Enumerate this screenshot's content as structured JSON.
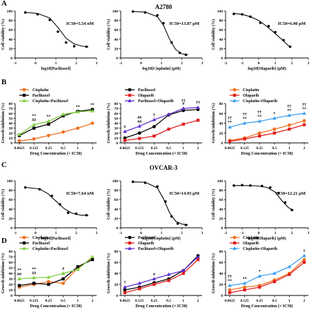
{
  "panel_letters": [
    "A",
    "B",
    "C",
    "D"
  ],
  "cell_lines": [
    "A2780",
    "OVCAR-3"
  ],
  "chart_data": [
    {
      "id": "A1",
      "type": "line",
      "row": "A",
      "col": 0,
      "xlabel": "log10[Paclitaxel]",
      "ylabel": "Cell viability (%)",
      "annotation": "IC50=5.54 nM",
      "xlim": [
        -1,
        3
      ],
      "ylim": [
        0,
        100
      ],
      "xticks": [
        -1,
        0,
        1,
        2,
        3
      ],
      "yticks": [
        0,
        20,
        40,
        60,
        80,
        100
      ],
      "points_x": [
        -0.5,
        0.1,
        0.7,
        1.1,
        1.5,
        1.9,
        2.5
      ],
      "points_y": [
        97,
        93,
        81,
        56,
        33,
        25,
        24
      ],
      "curve_x": [
        -0.5,
        0.1,
        0.7,
        1.1,
        1.5,
        1.9,
        2.3,
        2.6
      ],
      "curve_y": [
        97,
        95,
        85,
        65,
        42,
        30,
        25,
        24
      ]
    },
    {
      "id": "A2",
      "type": "line",
      "row": "A",
      "col": 1,
      "xlabel": "log10[Cisplatin] (μM)",
      "ylabel": "Cell viability (%)",
      "annotation": "IC50=13.87 μM",
      "xlim": [
        -1,
        3
      ],
      "ylim": [
        0,
        100
      ],
      "xticks": [
        -1,
        0,
        1,
        2,
        3
      ],
      "yticks": [
        0,
        20,
        40,
        60,
        80,
        100
      ],
      "points_x": [
        -0.4,
        0.2,
        0.8,
        1.1,
        1.5,
        1.9,
        2.2
      ],
      "points_y": [
        99,
        97,
        91,
        74,
        33,
        11,
        7
      ],
      "curve_x": [
        -0.4,
        0.2,
        0.8,
        1.1,
        1.4,
        1.7,
        2.0,
        2.3
      ],
      "curve_y": [
        99,
        98,
        88,
        70,
        40,
        18,
        9,
        7
      ]
    },
    {
      "id": "A3",
      "type": "line",
      "row": "A",
      "col": 2,
      "xlabel": "log10[Olaparib] (μM)",
      "ylabel": "Cell viability (%)",
      "annotation": "IC50=6.00 μM",
      "xlim": [
        -2,
        3
      ],
      "ylim": [
        0,
        100
      ],
      "xticks": [
        -2,
        -1,
        0,
        1,
        2,
        3
      ],
      "yticks": [
        0,
        20,
        40,
        60,
        80,
        100
      ],
      "points_x": [
        -1.5,
        -1,
        -0.5,
        0.1,
        0.6,
        1.0,
        1.5,
        1.9
      ],
      "points_y": [
        94,
        93,
        88,
        75,
        68,
        55,
        38,
        24
      ],
      "curve_x": [
        -1.5,
        -1,
        -0.5,
        0,
        0.5,
        1,
        1.5,
        1.9
      ],
      "curve_y": [
        95,
        93,
        88,
        80,
        67,
        52,
        36,
        23
      ]
    },
    {
      "id": "B1",
      "type": "line",
      "row": "B",
      "col": 0,
      "xlabel": "Drug Concentration (× IC50)",
      "ylabel": "Growth inhibition (%)",
      "categories": [
        "0.0625",
        "0.125",
        "0.25",
        "0.5",
        "1",
        "2"
      ],
      "ylim": [
        0,
        80
      ],
      "yticks": [
        0,
        10,
        20,
        30,
        40,
        50,
        60,
        70,
        80
      ],
      "legend": [
        "Cisplatin",
        "Paclitaxel",
        "Cisplatin+Paclitaxel"
      ],
      "series": [
        {
          "name": "Cisplatin",
          "color": "#f07020",
          "marker": "circle",
          "values": [
            4,
            8,
            15,
            22,
            30,
            40
          ]
        },
        {
          "name": "Paclitaxel",
          "color": "#000000",
          "marker": "square",
          "values": [
            15,
            30,
            38,
            55,
            64,
            68
          ]
        },
        {
          "name": "Cisplatin+Paclitaxel",
          "color": "#80d040",
          "marker": "triangle",
          "values": [
            17,
            37,
            44,
            58,
            63,
            65
          ]
        }
      ],
      "annotations": [
        {
          "i": 1,
          "text": "##"
        },
        {
          "i": 1,
          "text": "**"
        },
        {
          "i": 2,
          "text": "**"
        },
        {
          "i": 4,
          "text": "**"
        },
        {
          "i": 5,
          "text": "**"
        }
      ]
    },
    {
      "id": "B2",
      "type": "line",
      "row": "B",
      "col": 1,
      "xlabel": "Drug Concentration (× IC50)",
      "ylabel": "Growth inhibition (%)",
      "categories": [
        "0.0625",
        "0.125",
        "0.25",
        "0.5",
        "1",
        "2"
      ],
      "ylim": [
        0,
        80
      ],
      "yticks": [
        0,
        10,
        20,
        30,
        40,
        50,
        60,
        70,
        80
      ],
      "legend": [
        "Paclitaxel",
        "Olaparib",
        "Paclitaxel+Olaparib"
      ],
      "series": [
        {
          "name": "Paclitaxel",
          "color": "#000000",
          "marker": "circle",
          "values": [
            10,
            20,
            33,
            57,
            66,
            68
          ]
        },
        {
          "name": "Olaparib",
          "color": "#e02020",
          "marker": "square",
          "values": [
            5,
            9,
            14,
            28,
            38,
            46
          ]
        },
        {
          "name": "Paclitaxel+Olaparib",
          "color": "#6030d0",
          "marker": "triangle",
          "values": [
            23,
            34,
            47,
            58,
            70,
            72
          ]
        }
      ],
      "annotations": [
        {
          "i": 0,
          "text": "#"
        },
        {
          "i": 1,
          "text": "##"
        },
        {
          "i": 1,
          "text": "##"
        },
        {
          "i": 2,
          "text": "†"
        },
        {
          "i": 4,
          "text": "#"
        },
        {
          "i": 4,
          "text": "††"
        },
        {
          "i": 5,
          "text": "††"
        }
      ]
    },
    {
      "id": "B3",
      "type": "line",
      "row": "B",
      "col": 2,
      "xlabel": "Drug Concentration (× IC50)",
      "ylabel": "Growth inhibition (%)",
      "categories": [
        "0.0625",
        "0.125",
        "0.25",
        "0.5",
        "1",
        "2"
      ],
      "ylim": [
        0,
        80
      ],
      "yticks": [
        0,
        20,
        40,
        60,
        80
      ],
      "legend": [
        "Cisplatin",
        "Olaparib",
        "Cisplatin+Olaparib"
      ],
      "series": [
        {
          "name": "Cisplatin",
          "color": "#f07020",
          "marker": "circle",
          "values": [
            5,
            10,
            20,
            28,
            36,
            45
          ]
        },
        {
          "name": "Olaparib",
          "color": "#e02020",
          "marker": "square",
          "values": [
            3,
            8,
            14,
            20,
            28,
            37
          ]
        },
        {
          "name": "Cisplatin+Olaparib",
          "color": "#40a0f0",
          "marker": "triangle",
          "values": [
            32,
            40,
            44,
            50,
            56,
            60
          ]
        }
      ],
      "annotations": [
        {
          "i": 0,
          "text": "**"
        },
        {
          "i": 0,
          "text": "††"
        },
        {
          "i": 1,
          "text": "**"
        },
        {
          "i": 1,
          "text": "††"
        },
        {
          "i": 2,
          "text": "**"
        },
        {
          "i": 2,
          "text": "††"
        },
        {
          "i": 3,
          "text": "*"
        },
        {
          "i": 4,
          "text": "**"
        },
        {
          "i": 4,
          "text": "††"
        },
        {
          "i": 5,
          "text": "**"
        },
        {
          "i": 5,
          "text": "††"
        }
      ]
    },
    {
      "id": "C1",
      "type": "line",
      "row": "C",
      "col": 0,
      "xlabel": "log10[Paclitaxel]",
      "ylabel": "Cell viability (%)",
      "annotation": "IC50=7.64 nM",
      "xlim": [
        -1,
        3
      ],
      "ylim": [
        0,
        100
      ],
      "xticks": [
        -1,
        0,
        1,
        2,
        3
      ],
      "yticks": [
        0,
        20,
        40,
        60,
        80,
        100
      ],
      "points_x": [
        -0.5,
        0.2,
        0.8,
        1.2,
        1.6,
        2.0,
        2.5
      ],
      "points_y": [
        86,
        82,
        68,
        50,
        32,
        30,
        27
      ],
      "curve_x": [
        -0.5,
        0.2,
        0.6,
        1.0,
        1.4,
        1.8,
        2.2,
        2.6
      ],
      "curve_y": [
        86,
        83,
        73,
        57,
        41,
        31,
        27,
        26
      ]
    },
    {
      "id": "C2",
      "type": "line",
      "row": "C",
      "col": 1,
      "xlabel": "log10[Cisplatin] (μM)",
      "ylabel": "Cell viability (%)",
      "annotation": "IC50=14.93 μM",
      "xlim": [
        -1,
        3
      ],
      "ylim": [
        0,
        100
      ],
      "xticks": [
        -1,
        0,
        1,
        2,
        3
      ],
      "yticks": [
        0,
        20,
        40,
        60,
        80,
        100
      ],
      "points_x": [
        -0.4,
        0.2,
        0.8,
        1.2,
        1.5,
        1.8,
        2.2
      ],
      "points_y": [
        98,
        96,
        88,
        56,
        24,
        9,
        6
      ],
      "curve_x": [
        -0.4,
        0.2,
        0.8,
        1.1,
        1.4,
        1.7,
        2.0,
        2.3
      ],
      "curve_y": [
        98,
        97,
        85,
        62,
        32,
        14,
        8,
        6
      ]
    },
    {
      "id": "C3",
      "type": "line",
      "row": "C",
      "col": 2,
      "xlabel": "log10[Olaparib] (μM)",
      "ylabel": "Cell viability (%)",
      "annotation": "IC50=12.21 μM",
      "xlim": [
        -2,
        3
      ],
      "ylim": [
        0,
        100
      ],
      "xticks": [
        -2,
        -1,
        0,
        1,
        2,
        3
      ],
      "yticks": [
        0,
        20,
        40,
        60,
        80,
        100
      ],
      "points_x": [
        -1.5,
        -1.0,
        -0.5,
        0.2,
        0.7,
        1.2,
        1.6,
        2.0
      ],
      "points_y": [
        90,
        91,
        90,
        89,
        86,
        74,
        54,
        38
      ],
      "curve_x": [
        -1.5,
        -1,
        -0.5,
        0,
        0.5,
        1,
        1.4,
        1.8,
        2.1
      ],
      "curve_y": [
        90,
        90,
        90,
        89,
        86,
        76,
        58,
        43,
        37
      ]
    },
    {
      "id": "D1",
      "type": "line",
      "row": "D",
      "col": 0,
      "xlabel": "Drug Concentration (× IC50)",
      "ylabel": "Growth inhibition (%)",
      "categories": [
        "0.0625",
        "0.125",
        "0.25",
        "0.5",
        "1",
        "2"
      ],
      "ylim": [
        0,
        80
      ],
      "yticks": [
        0,
        10,
        20,
        30,
        40,
        50,
        60,
        70,
        80
      ],
      "legend": [
        "Cisplatin",
        "Paclitaxel",
        "Cisplatin+Paclitaxel"
      ],
      "series": [
        {
          "name": "Cisplatin",
          "color": "#f07020",
          "marker": "circle",
          "values": [
            15,
            20,
            25,
            22,
            50,
            68
          ]
        },
        {
          "name": "Paclitaxel",
          "color": "#000000",
          "marker": "square",
          "values": [
            18,
            22,
            20,
            30,
            52,
            65
          ]
        },
        {
          "name": "Cisplatin+Paclitaxel",
          "color": "#80d040",
          "marker": "triangle",
          "values": [
            30,
            32,
            33,
            40,
            47,
            70
          ]
        }
      ],
      "annotations": [
        {
          "i": 0,
          "text": "##"
        },
        {
          "i": 0,
          "text": "**"
        },
        {
          "i": 1,
          "text": "##"
        },
        {
          "i": 1,
          "text": "**"
        },
        {
          "i": 3,
          "text": "#"
        }
      ]
    },
    {
      "id": "D2",
      "type": "line",
      "row": "D",
      "col": 1,
      "xlabel": "Drug Concentration (× IC50)",
      "ylabel": "Growth inhibition (%)",
      "categories": [
        "0.0625",
        "0.125",
        "0.25",
        "0.5",
        "1",
        "2"
      ],
      "ylim": [
        0,
        80
      ],
      "yticks": [
        0,
        20,
        40,
        60,
        80
      ],
      "legend": [
        "Paclitaxel",
        "Olaparib",
        "Paclitaxel+Olaparib"
      ],
      "series": [
        {
          "name": "Paclitaxel",
          "color": "#000000",
          "marker": "circle",
          "values": [
            10,
            15,
            23,
            30,
            45,
            72
          ]
        },
        {
          "name": "Olaparib",
          "color": "#e02020",
          "marker": "square",
          "values": [
            5,
            12,
            20,
            27,
            40,
            65
          ]
        },
        {
          "name": "Paclitaxel+Olaparib",
          "color": "#6030d0",
          "marker": "triangle",
          "values": [
            15,
            22,
            30,
            38,
            45,
            70
          ]
        }
      ],
      "annotations": [
        {
          "i": 0,
          "text": "†"
        },
        {
          "i": 2,
          "text": "#"
        }
      ]
    },
    {
      "id": "D3",
      "type": "line",
      "row": "D",
      "col": 2,
      "xlabel": "Drug Concentration (× IC50)",
      "ylabel": "Growth inhibition (%)",
      "categories": [
        "0.0625",
        "0.125",
        "0.25",
        "0.5",
        "1",
        "2"
      ],
      "ylim": [
        0,
        80
      ],
      "yticks": [
        0,
        20,
        40,
        60,
        80
      ],
      "legend": [
        "Cisplatin",
        "Olaparib",
        "Cisplatin+Olaparib"
      ],
      "series": [
        {
          "name": "Cisplatin",
          "color": "#f07020",
          "marker": "circle",
          "values": [
            10,
            15,
            18,
            28,
            40,
            65
          ]
        },
        {
          "name": "Olaparib",
          "color": "#e02020",
          "marker": "square",
          "values": [
            5,
            10,
            15,
            25,
            38,
            60
          ]
        },
        {
          "name": "Cisplatin+Olaparib",
          "color": "#40a0f0",
          "marker": "triangle",
          "values": [
            18,
            22,
            35,
            40,
            52,
            72
          ]
        }
      ],
      "annotations": [
        {
          "i": 0,
          "text": "**"
        },
        {
          "i": 0,
          "text": "††"
        },
        {
          "i": 1,
          "text": "**"
        },
        {
          "i": 2,
          "text": "*"
        },
        {
          "i": 5,
          "text": "†"
        }
      ]
    }
  ]
}
